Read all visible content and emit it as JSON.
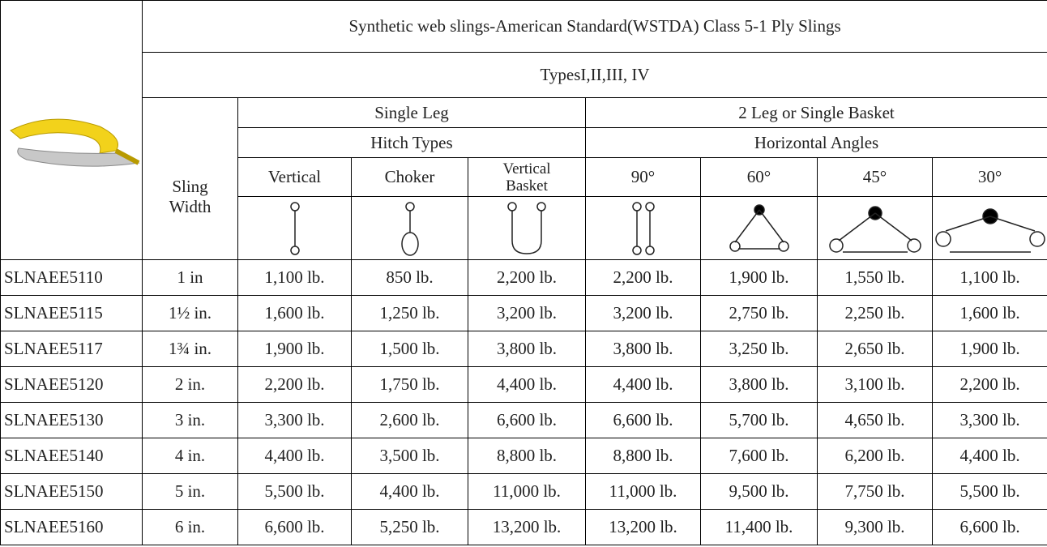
{
  "header": {
    "title": "Synthetic web slings-American Standard(WSTDA) Class 5-1 Ply Slings",
    "subtitle": "TypesI,II,III, IV"
  },
  "groups": [
    {
      "label": "Single Leg",
      "sublabel": "Hitch Types"
    },
    {
      "label": "2 Leg or Single Basket",
      "sublabel": "Horizontal Angles"
    }
  ],
  "width_label": [
    "Sling",
    "Width"
  ],
  "columns": [
    "Vertical",
    "Choker",
    "Vertical Basket",
    "90°",
    "60°",
    "45°",
    "30°"
  ],
  "rows": [
    [
      "SLNAEE5110",
      "1 in",
      "1,100 lb.",
      "850 lb.",
      "2,200 lb.",
      "2,200 lb.",
      "1,900 lb.",
      "1,550 lb.",
      "1,100 lb."
    ],
    [
      "SLNAEE5115",
      "1½ in.",
      "1,600 lb.",
      "1,250 lb.",
      "3,200 lb.",
      "3,200 lb.",
      "2,750 lb.",
      "2,250 lb.",
      "1,600 lb."
    ],
    [
      "SLNAEE5117",
      "1¾ in.",
      "1,900 lb.",
      "1,500 lb.",
      "3,800 lb.",
      "3,800 lb.",
      "3,250 lb.",
      "2,650 lb.",
      "1,900 lb."
    ],
    [
      "SLNAEE5120",
      "2 in.",
      "2,200 lb.",
      "1,750 lb.",
      "4,400 lb.",
      "4,400 lb.",
      "3,800 lb.",
      "3,100 lb.",
      "2,200 lb."
    ],
    [
      "SLNAEE5130",
      "3 in.",
      "3,300 lb.",
      "2,600 lb.",
      "6,600 lb.",
      "6,600 lb.",
      "5,700 lb.",
      "4,650 lb.",
      "3,300 lb."
    ],
    [
      "SLNAEE5140",
      "4 in.",
      "4,400 lb.",
      "3,500 lb.",
      "8,800 lb.",
      "8,800 lb.",
      "7,600 lb.",
      "6,200 lb.",
      "4,400 lb."
    ],
    [
      "SLNAEE5150",
      "5 in.",
      "5,500 lb.",
      "4,400 lb.",
      "11,000 lb.",
      "11,000 lb.",
      "9,500 lb.",
      "7,750 lb.",
      "5,500 lb."
    ],
    [
      "SLNAEE5160",
      "6 in.",
      "6,600 lb.",
      "5,250 lb.",
      "13,200 lb.",
      "13,200 lb.",
      "11,400 lb.",
      "9,300 lb.",
      "6,600 lb."
    ]
  ]
}
